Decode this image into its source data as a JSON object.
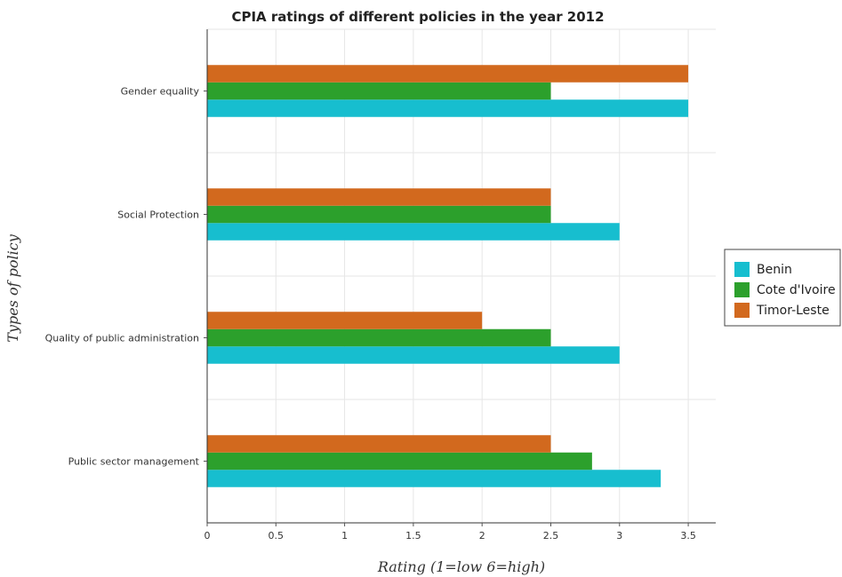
{
  "chart_data": {
    "type": "bar",
    "orientation": "horizontal",
    "title": "CPIA ratings of different policies in the year 2012",
    "xlabel": "Rating (1=low 6=high)",
    "ylabel": "Types of policy",
    "categories": [
      "Gender equality",
      "Social Protection",
      "Quality of public administration",
      "Public sector management"
    ],
    "series": [
      {
        "name": "Benin",
        "color": "#17becf",
        "values": [
          3.5,
          3.0,
          3.0,
          3.3
        ]
      },
      {
        "name": "Cote d'Ivoire",
        "color": "#2ca02c",
        "values": [
          2.5,
          2.5,
          2.5,
          2.8
        ]
      },
      {
        "name": "Timor-Leste",
        "color": "#d2691e",
        "values": [
          3.5,
          2.5,
          2.0,
          2.5
        ]
      }
    ],
    "xlim": [
      0,
      3.7
    ],
    "xticks": [
      "0",
      "0.5",
      "1",
      "1.5",
      "2",
      "2.5",
      "3",
      "3.5"
    ],
    "grid": true,
    "legend_position": "right"
  }
}
